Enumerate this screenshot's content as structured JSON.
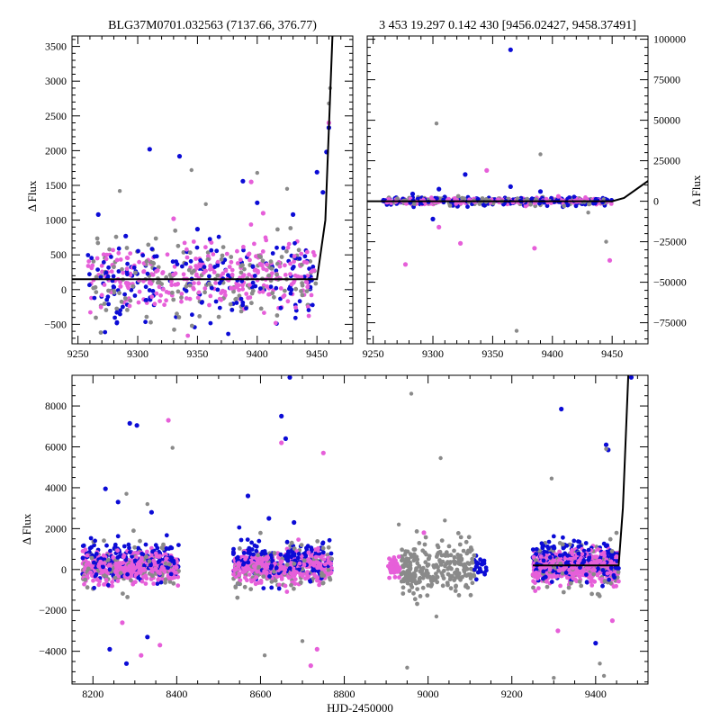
{
  "colors": {
    "blue": "#0b0bd6",
    "magenta": "#e65fd9",
    "gray": "#8a8a8a",
    "model": "#000000"
  },
  "chart_data": [
    {
      "type": "scatter",
      "panel": "top-left",
      "title": "BLG37M0701.032563 (7137.66, 376.77)",
      "xlabel": "",
      "ylabel": "Δ Flux",
      "xlim": [
        9245,
        9480
      ],
      "ylim": [
        -780,
        3650
      ],
      "xticks": [
        "9250",
        "9300",
        "9350",
        "9400",
        "9450"
      ],
      "yticks": [
        "−500",
        "0",
        "500",
        "1000",
        "1500",
        "2000",
        "2500",
        "3000",
        "3500"
      ],
      "model_line": {
        "x": [
          9245,
          9450,
          9457,
          9463
        ],
        "y": [
          150,
          150,
          1000,
          3650
        ]
      },
      "series": [
        {
          "name": "blue",
          "points": [
            [
              9310,
              2020
            ],
            [
              9335,
              1920
            ],
            [
              9388,
              1560
            ],
            [
              9450,
              1690
            ],
            [
              9458,
              1980
            ],
            [
              9460,
              2330
            ],
            [
              9455,
              1400
            ],
            [
              9267,
              1080
            ],
            [
              9290,
              770
            ],
            [
              9350,
              870
            ],
            [
              9400,
              1250
            ],
            [
              9430,
              1080
            ]
          ]
        },
        {
          "name": "gray",
          "points": [
            [
              9285,
              1420
            ],
            [
              9345,
              1720
            ],
            [
              9357,
              1230
            ],
            [
              9400,
              1680
            ],
            [
              9425,
              1450
            ],
            [
              9460,
              2680
            ],
            [
              9461,
              2900
            ]
          ]
        },
        {
          "name": "magenta",
          "points": [
            [
              9395,
              1550
            ],
            [
              9405,
              1100
            ],
            [
              9330,
              1020
            ],
            [
              9460,
              2400
            ]
          ]
        }
      ]
    },
    {
      "type": "scatter",
      "panel": "top-right",
      "title": "3 453 19.297 0.142 430 [9456.02427, 9458.37491]",
      "xlabel": "",
      "ylabel": "Δ Flux",
      "xlim": [
        9245,
        9480
      ],
      "ylim": [
        -88000,
        102000
      ],
      "xticks": [
        "9250",
        "9300",
        "9350",
        "9400",
        "9450"
      ],
      "yticks": [
        "−75000",
        "−50000",
        "−25000",
        "0",
        "25000",
        "50000",
        "75000",
        "100000"
      ],
      "model_line": {
        "x": [
          9245,
          9450,
          9460,
          9480
        ],
        "y": [
          0,
          0,
          2000,
          12500
        ]
      },
      "series": [
        {
          "name": "blue",
          "points": [
            [
              9365,
              93500
            ],
            [
              9327,
              16500
            ],
            [
              9365,
              9000
            ],
            [
              9305,
              7500
            ],
            [
              9390,
              6000
            ],
            [
              9283,
              4500
            ],
            [
              9300,
              -11000
            ]
          ]
        },
        {
          "name": "gray",
          "points": [
            [
              9303,
              48000
            ],
            [
              9390,
              29000
            ],
            [
              9370,
              -80000
            ],
            [
              9445,
              -25000
            ],
            [
              9430,
              -7000
            ]
          ]
        },
        {
          "name": "magenta",
          "points": [
            [
              9345,
              19000
            ],
            [
              9277,
              -39000
            ],
            [
              9323,
              -26000
            ],
            [
              9385,
              -29000
            ],
            [
              9448,
              -36500
            ],
            [
              9305,
              -16000
            ],
            [
              9405,
              3000
            ]
          ]
        }
      ]
    },
    {
      "type": "scatter",
      "panel": "bottom",
      "title": "",
      "xlabel": "HJD-2450000",
      "ylabel": "Δ Flux",
      "xlim": [
        8150,
        9525
      ],
      "ylim": [
        -5600,
        9500
      ],
      "xticks": [
        "8200",
        "8400",
        "8600",
        "8800",
        "9000",
        "9200",
        "9400"
      ],
      "yticks": [
        "−4000",
        "−2000",
        "0",
        "2000",
        "4000",
        "6000",
        "8000"
      ],
      "model_line": {
        "x": [
          9250,
          9455,
          9465,
          9478
        ],
        "y": [
          200,
          200,
          3000,
          9500
        ]
      },
      "series": [
        {
          "name": "blue",
          "points": [
            [
              8288,
              7150
            ],
            [
              8305,
              7050
            ],
            [
              8660,
              6400
            ],
            [
              8650,
              7500
            ],
            [
              8670,
              9400
            ],
            [
              9318,
              7850
            ],
            [
              9425,
              6100
            ],
            [
              9430,
              5850
            ],
            [
              9485,
              9400
            ],
            [
              8230,
              3950
            ],
            [
              8260,
              3300
            ],
            [
              8340,
              2800
            ],
            [
              8570,
              3600
            ],
            [
              8620,
              2500
            ],
            [
              8680,
              2300
            ],
            [
              8240,
              -3900
            ],
            [
              8280,
              -4600
            ],
            [
              8330,
              -3300
            ],
            [
              9400,
              -3600
            ]
          ]
        },
        {
          "name": "gray",
          "points": [
            [
              8280,
              3700
            ],
            [
              8330,
              3200
            ],
            [
              8390,
              5950
            ],
            [
              8960,
              8600
            ],
            [
              9030,
              5450
            ],
            [
              9295,
              4450
            ],
            [
              9425,
              5900
            ],
            [
              8930,
              2200
            ],
            [
              9040,
              2400
            ],
            [
              8950,
              -4800
            ],
            [
              9020,
              -2300
            ],
            [
              9300,
              -5300
            ],
            [
              9410,
              -4600
            ],
            [
              9420,
              -5200
            ],
            [
              8610,
              -4200
            ],
            [
              8700,
              -3500
            ]
          ]
        },
        {
          "name": "magenta",
          "points": [
            [
              8380,
              7300
            ],
            [
              8750,
              5700
            ],
            [
              8650,
              6200
            ],
            [
              8270,
              -2600
            ],
            [
              8315,
              -4200
            ],
            [
              8360,
              -3700
            ],
            [
              8720,
              -4700
            ],
            [
              8735,
              -3900
            ],
            [
              9310,
              -3000
            ],
            [
              9440,
              -2500
            ],
            [
              8990,
              1800
            ]
          ]
        }
      ]
    }
  ]
}
